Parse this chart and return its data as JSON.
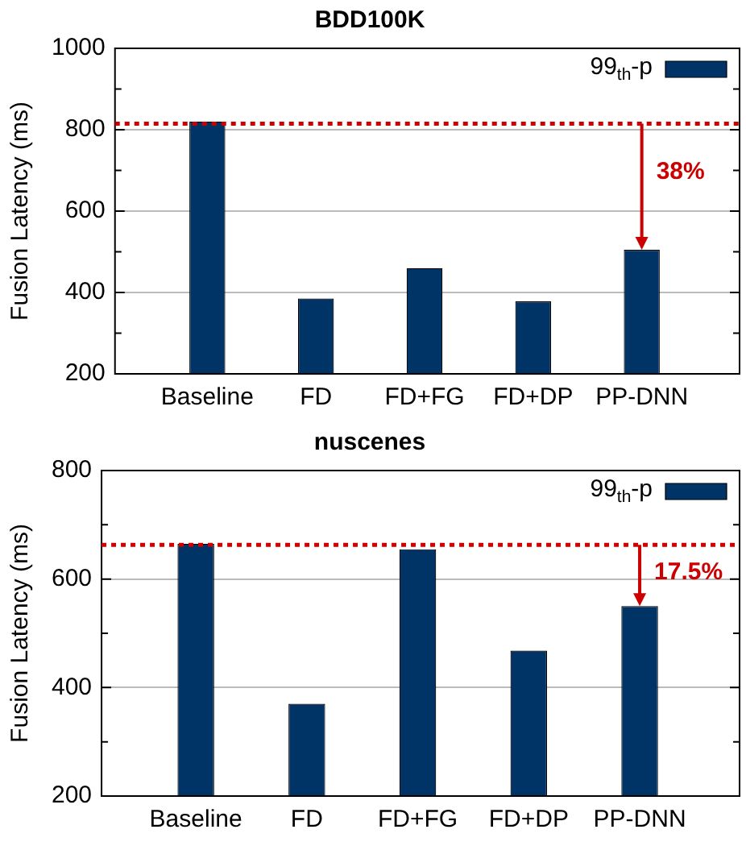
{
  "chart_data": [
    {
      "type": "bar",
      "title": "BDD100K",
      "ylabel": "Fusion Latency (ms)",
      "categories": [
        "Baseline",
        "FD",
        "FD+FG",
        "FD+DP",
        "PP-DNN"
      ],
      "series": [
        {
          "name": "99$_{th}$-p",
          "color": "#003366",
          "values": [
            820,
            385,
            460,
            378,
            505
          ]
        }
      ],
      "ylim": [
        200,
        1000
      ],
      "yticks": [
        200,
        {
          "value": 300,
          "label": null
        },
        400,
        {
          "value": 500,
          "label": null
        },
        600,
        {
          "value": 700,
          "label": null
        },
        800,
        {
          "value": 900,
          "label": null
        },
        1000
      ],
      "grid": "y",
      "legend": "top right",
      "ref_lines": [
        {
          "axis": "y",
          "value": 815,
          "color": "#cc0000",
          "line_style": "dotted"
        }
      ],
      "annotations": [
        "38%"
      ]
    },
    {
      "type": "bar",
      "title": "nuscenes",
      "ylabel": "Fusion Latency (ms)",
      "categories": [
        "Baseline",
        "FD",
        "FD+FG",
        "FD+DP",
        "PP-DNN"
      ],
      "series": [
        {
          "name": "99$_{th}$-p",
          "color": "#003366",
          "values": [
            665,
            370,
            655,
            468,
            550
          ]
        }
      ],
      "ylim": [
        200,
        800
      ],
      "yticks": [
        200,
        {
          "value": 300,
          "label": null
        },
        400,
        {
          "value": 500,
          "label": null
        },
        600,
        {
          "value": 700,
          "label": null
        },
        800
      ],
      "grid": "y",
      "legend": "top right",
      "ref_lines": [
        {
          "axis": "y",
          "value": 663,
          "color": "#cc0000",
          "line_style": "dotted"
        }
      ],
      "annotations": [
        "17.5%"
      ]
    }
  ]
}
